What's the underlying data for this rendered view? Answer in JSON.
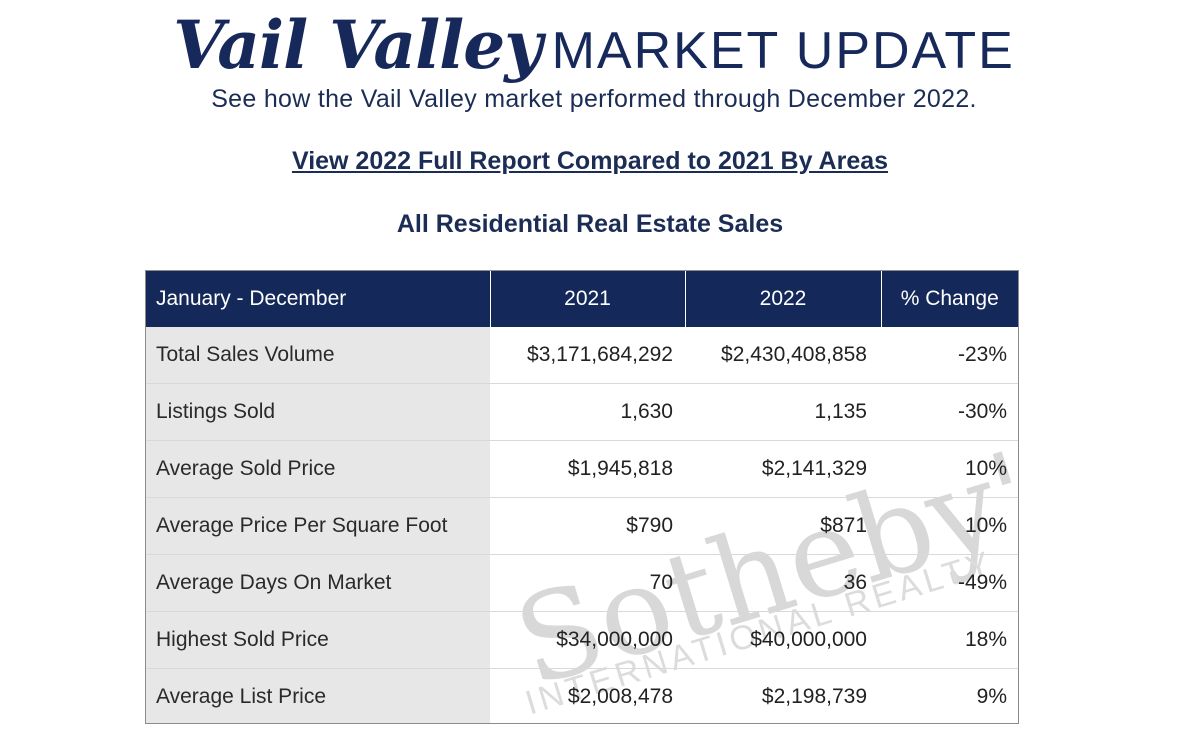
{
  "header": {
    "title_script": "Vail Valley",
    "title_rest": "MARKET UPDATE",
    "subtitle": "See how the Vail Valley market performed through December 2022.",
    "report_link": "View 2022 Full Report Compared to 2021 By Areas",
    "section_heading": "All Residential Real Estate Sales"
  },
  "table": {
    "columns": [
      "January - December",
      "2021",
      "2022",
      "% Change"
    ],
    "rows": [
      {
        "label": "Total Sales Volume",
        "y2021": "$3,171,684,292",
        "y2022": "$2,430,408,858",
        "change": "-23%"
      },
      {
        "label": "Listings Sold",
        "y2021": "1,630",
        "y2022": "1,135",
        "change": "-30%"
      },
      {
        "label": "Average Sold Price",
        "y2021": "$1,945,818",
        "y2022": "$2,141,329",
        "change": "10%"
      },
      {
        "label": "Average Price Per Square Foot",
        "y2021": "$790",
        "y2022": "$871",
        "change": "10%"
      },
      {
        "label": "Average Days On Market",
        "y2021": "70",
        "y2022": "36",
        "change": "-49%"
      },
      {
        "label": "Highest Sold Price",
        "y2021": "$34,000,000",
        "y2022": "$40,000,000",
        "change": "18%"
      },
      {
        "label": "Average List Price",
        "y2021": "$2,008,478",
        "y2022": "$2,198,739",
        "change": "9%"
      }
    ]
  },
  "watermark": {
    "brand": "Sotheby's",
    "sub": "INTERNATIONAL REALTY"
  },
  "colors": {
    "navy": "#14285a",
    "label_bg": "#e7e7e7"
  }
}
